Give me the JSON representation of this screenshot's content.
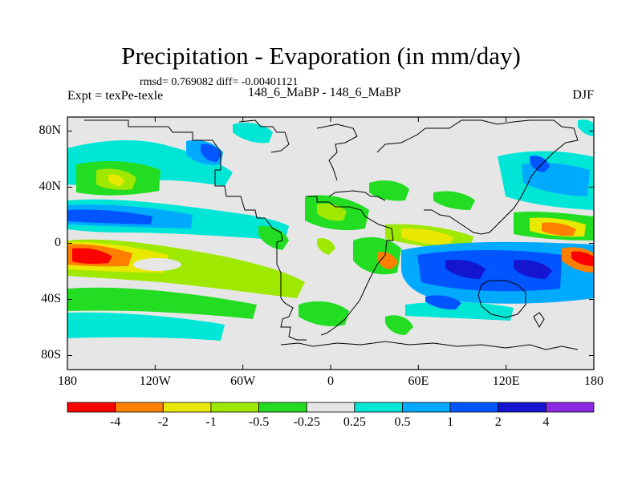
{
  "title": "Precipitation - Evaporation (in mm/day)",
  "stats": "rmsd= 0.769082 diff= -0.00401121",
  "expt": "Expt = texPe-texle",
  "case": "148_6_MaBP - 148_6_MaBP",
  "season": "DJF",
  "map": {
    "lon_range": [
      -180,
      180
    ],
    "lat_range": [
      -90,
      90
    ],
    "lat_ticks": [
      {
        "value": 80,
        "label": "80N"
      },
      {
        "value": 40,
        "label": "40N"
      },
      {
        "value": 0,
        "label": "0"
      },
      {
        "value": -40,
        "label": "40S"
      },
      {
        "value": -80,
        "label": "80S"
      }
    ],
    "lon_ticks": [
      {
        "value": -180,
        "label": "180"
      },
      {
        "value": -120,
        "label": "120W"
      },
      {
        "value": -60,
        "label": "60W"
      },
      {
        "value": 0,
        "label": "0"
      },
      {
        "value": 60,
        "label": "60E"
      },
      {
        "value": 120,
        "label": "120E"
      },
      {
        "value": 180,
        "label": "180"
      }
    ]
  },
  "colorbar": {
    "colors": [
      "#ff0000",
      "#ff8000",
      "#e8e800",
      "#9fe800",
      "#22dd22",
      "#e6e6e6",
      "#00e6d6",
      "#00aaff",
      "#0055ff",
      "#1515d0",
      "#8a2be2"
    ],
    "labels": [
      "-4",
      "-2",
      "-1",
      "-0.5",
      "-0.25",
      "0.25",
      "0.5",
      "1",
      "2",
      "4"
    ]
  }
}
